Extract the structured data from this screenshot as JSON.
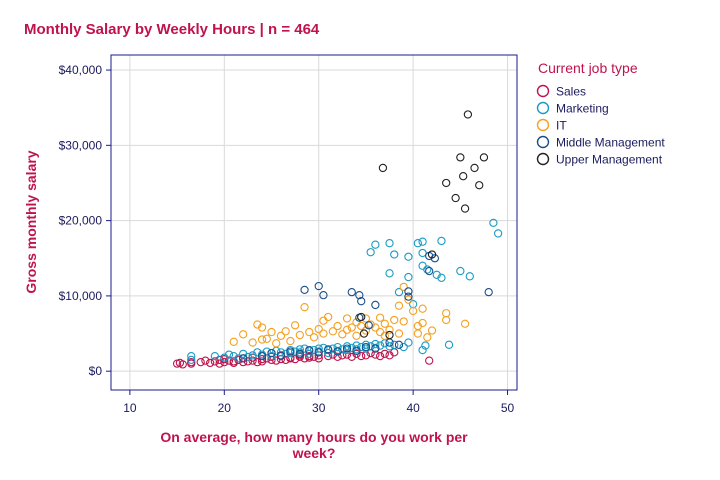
{
  "colors": {
    "title": "#c0134d",
    "axis_title": "#c0134d",
    "legend_title": "#c0134d",
    "frame": "#1a1a8c",
    "grid": "#d9d9d9",
    "tick_text": "#1a1a5e"
  },
  "chart_data": {
    "type": "scatter",
    "title": "Monthly Salary by Weekly Hours | n = 464",
    "xlabel_lines": [
      "On average, how many hours do you work per",
      "week?"
    ],
    "ylabel": "Gross monthly salary",
    "xlim": [
      8,
      51
    ],
    "ylim": [
      -2500,
      42000
    ],
    "x_ticks": [
      10,
      20,
      30,
      40,
      50
    ],
    "y_ticks": [
      0,
      10000,
      20000,
      30000,
      40000
    ],
    "y_tick_labels": [
      "$0",
      "$10,000",
      "$20,000",
      "$30,000",
      "$40,000"
    ],
    "grid": true,
    "legend": {
      "title": "Current job type",
      "placement": "right"
    },
    "series": [
      {
        "name": "Sales",
        "color": "#c0134d",
        "points": [
          [
            15,
            1000
          ],
          [
            15.3,
            1100
          ],
          [
            15.6,
            900
          ],
          [
            16.5,
            1000
          ],
          [
            16.5,
            1200
          ],
          [
            17.5,
            1200
          ],
          [
            18,
            1400
          ],
          [
            18.5,
            1100
          ],
          [
            19,
            1300
          ],
          [
            19.5,
            1500
          ],
          [
            19.5,
            1000
          ],
          [
            20,
            1200
          ],
          [
            20,
            1600
          ],
          [
            20.5,
            1400
          ],
          [
            21,
            1300
          ],
          [
            21,
            1100
          ],
          [
            21.5,
            1500
          ],
          [
            22,
            1200
          ],
          [
            22,
            1700
          ],
          [
            22.5,
            1300
          ],
          [
            23,
            1400
          ],
          [
            23,
            1800
          ],
          [
            23.5,
            1200
          ],
          [
            24,
            1600
          ],
          [
            24,
            1300
          ],
          [
            24.5,
            1700
          ],
          [
            25,
            1500
          ],
          [
            25,
            1900
          ],
          [
            25.5,
            1400
          ],
          [
            26,
            1600
          ],
          [
            26,
            2000
          ],
          [
            26.5,
            1500
          ],
          [
            27,
            1700
          ],
          [
            27,
            1800
          ],
          [
            27.5,
            1600
          ],
          [
            28,
            1900
          ],
          [
            28,
            2100
          ],
          [
            28.5,
            1700
          ],
          [
            29,
            1800
          ],
          [
            29,
            2000
          ],
          [
            29.5,
            1900
          ],
          [
            30,
            2100
          ],
          [
            30,
            1700
          ],
          [
            31,
            2000
          ],
          [
            31.5,
            2200
          ],
          [
            32,
            1900
          ],
          [
            32.5,
            2100
          ],
          [
            33,
            2200
          ],
          [
            33.5,
            1900
          ],
          [
            34,
            2300
          ],
          [
            34.5,
            2000
          ],
          [
            35,
            2100
          ],
          [
            35.5,
            2400
          ],
          [
            36,
            2200
          ],
          [
            36.5,
            2000
          ],
          [
            37,
            2300
          ],
          [
            37.5,
            2100
          ],
          [
            38,
            2500
          ],
          [
            41.7,
            1400
          ]
        ]
      },
      {
        "name": "Marketing",
        "color": "#1a9bc4",
        "points": [
          [
            16.5,
            2000
          ],
          [
            16.5,
            1500
          ],
          [
            19,
            2000
          ],
          [
            20,
            1800
          ],
          [
            20.5,
            2200
          ],
          [
            21,
            2000
          ],
          [
            21.5,
            1700
          ],
          [
            22,
            2300
          ],
          [
            22.5,
            1900
          ],
          [
            23,
            2100
          ],
          [
            23.5,
            2500
          ],
          [
            24,
            2200
          ],
          [
            24.5,
            2600
          ],
          [
            25,
            2400
          ],
          [
            25,
            2000
          ],
          [
            25.5,
            2700
          ],
          [
            26,
            2500
          ],
          [
            26.5,
            2300
          ],
          [
            27,
            2800
          ],
          [
            27,
            2400
          ],
          [
            27.5,
            2600
          ],
          [
            28,
            2900
          ],
          [
            28,
            2500
          ],
          [
            28.5,
            3000
          ],
          [
            29,
            2700
          ],
          [
            29,
            2300
          ],
          [
            29.5,
            2800
          ],
          [
            30,
            3000
          ],
          [
            30,
            2600
          ],
          [
            30.5,
            3100
          ],
          [
            31,
            2800
          ],
          [
            31,
            2400
          ],
          [
            31.5,
            3000
          ],
          [
            32,
            3200
          ],
          [
            32,
            2700
          ],
          [
            32.5,
            2900
          ],
          [
            33,
            3300
          ],
          [
            33,
            2800
          ],
          [
            33.5,
            3100
          ],
          [
            34,
            3400
          ],
          [
            34,
            2900
          ],
          [
            34.5,
            3200
          ],
          [
            35,
            3500
          ],
          [
            35,
            3000
          ],
          [
            35.5,
            3300
          ],
          [
            36,
            3600
          ],
          [
            36,
            3100
          ],
          [
            36.5,
            3400
          ],
          [
            37,
            3700
          ],
          [
            37.5,
            3300
          ],
          [
            38,
            3500
          ],
          [
            39,
            3200
          ],
          [
            39.5,
            3800
          ],
          [
            41,
            2800
          ],
          [
            41.3,
            3400
          ],
          [
            43.8,
            3500
          ],
          [
            35.5,
            15800
          ],
          [
            36,
            16800
          ],
          [
            37.5,
            17000
          ],
          [
            38,
            15500
          ],
          [
            39.5,
            15200
          ],
          [
            40.5,
            17000
          ],
          [
            41,
            17200
          ],
          [
            41,
            15700
          ],
          [
            43,
            17300
          ],
          [
            37.5,
            13000
          ],
          [
            39.5,
            12500
          ],
          [
            41.5,
            13500
          ],
          [
            42.5,
            12800
          ],
          [
            43,
            12400
          ],
          [
            45,
            13300
          ],
          [
            46,
            12600
          ],
          [
            48.5,
            19700
          ],
          [
            49,
            18300
          ],
          [
            41,
            14000
          ],
          [
            40,
            8900
          ],
          [
            38.5,
            10500
          ]
        ]
      },
      {
        "name": "IT",
        "color": "#f5a020",
        "points": [
          [
            21,
            3900
          ],
          [
            22,
            4900
          ],
          [
            23,
            3800
          ],
          [
            23.5,
            6200
          ],
          [
            24,
            4200
          ],
          [
            24,
            5800
          ],
          [
            24.5,
            4300
          ],
          [
            25,
            5200
          ],
          [
            25.5,
            3700
          ],
          [
            26,
            4700
          ],
          [
            26.5,
            5300
          ],
          [
            27,
            4000
          ],
          [
            27.5,
            6100
          ],
          [
            28,
            4800
          ],
          [
            28.5,
            8500
          ],
          [
            29,
            5200
          ],
          [
            29.5,
            4500
          ],
          [
            30,
            5600
          ],
          [
            30.5,
            5000
          ],
          [
            30.5,
            6700
          ],
          [
            31,
            7200
          ],
          [
            31.5,
            5300
          ],
          [
            32,
            6000
          ],
          [
            32.5,
            4900
          ],
          [
            33,
            7000
          ],
          [
            33,
            5500
          ],
          [
            33.5,
            5800
          ],
          [
            34,
            6500
          ],
          [
            34,
            4700
          ],
          [
            34.5,
            6000
          ],
          [
            35,
            5400
          ],
          [
            35,
            7000
          ],
          [
            35.5,
            6200
          ],
          [
            36,
            5800
          ],
          [
            36.5,
            7100
          ],
          [
            36.5,
            5200
          ],
          [
            37,
            6300
          ],
          [
            37.5,
            5500
          ],
          [
            38,
            6800
          ],
          [
            38.5,
            5000
          ],
          [
            39,
            6600
          ],
          [
            39,
            11200
          ],
          [
            39.5,
            9500
          ],
          [
            40,
            8000
          ],
          [
            40.5,
            6000
          ],
          [
            40.5,
            5000
          ],
          [
            41,
            8300
          ],
          [
            41,
            6400
          ],
          [
            41.5,
            4500
          ],
          [
            42,
            5400
          ],
          [
            43.5,
            7700
          ],
          [
            43.5,
            6800
          ],
          [
            45.5,
            6300
          ],
          [
            37,
            4700
          ],
          [
            38.5,
            8700
          ]
        ]
      },
      {
        "name": "Middle Management",
        "color": "#1a4f8a",
        "points": [
          [
            22,
            1700
          ],
          [
            24,
            2000
          ],
          [
            25,
            2400
          ],
          [
            26,
            2100
          ],
          [
            27,
            2600
          ],
          [
            28,
            2300
          ],
          [
            29,
            2800
          ],
          [
            30,
            2500
          ],
          [
            31,
            2900
          ],
          [
            32,
            2600
          ],
          [
            33,
            3000
          ],
          [
            34,
            2700
          ],
          [
            35,
            3200
          ],
          [
            36,
            3000
          ],
          [
            28.5,
            10800
          ],
          [
            30,
            11300
          ],
          [
            30.5,
            10100
          ],
          [
            33.5,
            10500
          ],
          [
            34.3,
            10100
          ],
          [
            34.3,
            7100
          ],
          [
            34.5,
            9300
          ],
          [
            35.3,
            6100
          ],
          [
            36,
            8800
          ],
          [
            39.5,
            9900
          ],
          [
            39.5,
            10600
          ],
          [
            41.7,
            13300
          ],
          [
            41.7,
            15300
          ],
          [
            42.3,
            15000
          ],
          [
            48,
            10500
          ],
          [
            37.5,
            3800
          ],
          [
            38.5,
            3500
          ]
        ]
      },
      {
        "name": "Upper Management",
        "color": "#222222",
        "points": [
          [
            36.8,
            27000
          ],
          [
            42,
            15500
          ],
          [
            43.5,
            25000
          ],
          [
            44.5,
            23000
          ],
          [
            45,
            28400
          ],
          [
            45.3,
            25900
          ],
          [
            45.5,
            21600
          ],
          [
            45.8,
            34100
          ],
          [
            46.5,
            27000
          ],
          [
            47,
            24700
          ],
          [
            47.5,
            28400
          ],
          [
            34.5,
            7200
          ],
          [
            34.8,
            5000
          ],
          [
            37.5,
            4800
          ]
        ]
      }
    ]
  }
}
